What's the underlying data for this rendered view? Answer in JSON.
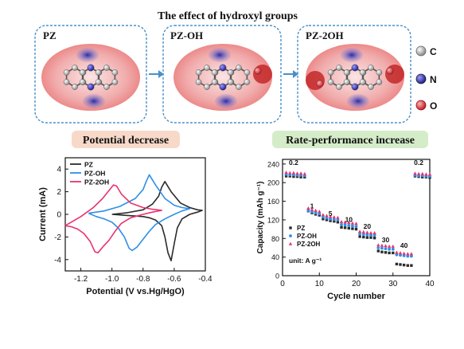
{
  "figure": {
    "title": "The effect of hydroxyl groups",
    "molecules": [
      {
        "label": "PZ"
      },
      {
        "label": "PZ-OH"
      },
      {
        "label": "PZ-2OH"
      }
    ],
    "atom_legend": [
      {
        "label": "C",
        "color": "#b9b9b9"
      },
      {
        "label": "N",
        "color": "#3b3bb5"
      },
      {
        "label": "O",
        "color": "#e23a4a"
      }
    ],
    "left_banner": "Potential decrease",
    "right_banner": "Rate-performance increase",
    "colors": {
      "left_banner_bg": "#f8d9c9",
      "right_banner_bg": "#d5ecc9",
      "esp_red": "#e05050",
      "esp_blue": "#4040c0",
      "frame_blue": "#4a90c8"
    }
  },
  "chart_data": [
    {
      "type": "line",
      "xlabel": "Potential (V vs.Hg/HgO)",
      "ylabel": "Current  (mA)",
      "xlim": [
        -1.3,
        -0.4
      ],
      "ylim": [
        -5,
        5
      ],
      "xticks": [
        "-1.2",
        "-1.0",
        "-0.8",
        "-0.6",
        "-0.4"
      ],
      "yticks": [
        "4",
        "2",
        "0",
        "-2",
        "-4"
      ],
      "legend_position": "top-left",
      "series": [
        {
          "name": "PZ",
          "color": "#2b2b2b",
          "x": [
            -1.0,
            -0.9,
            -0.8,
            -0.74,
            -0.7,
            -0.68,
            -0.66,
            -0.62,
            -0.56,
            -0.5,
            -0.45,
            -0.42,
            -0.45,
            -0.5,
            -0.55,
            -0.58,
            -0.6,
            -0.62,
            -0.64,
            -0.66,
            -0.68,
            -0.72,
            -0.76,
            -0.8,
            -0.85,
            -0.9,
            -0.95,
            -1.0
          ],
          "y": [
            0.0,
            0.15,
            0.4,
            0.9,
            1.6,
            2.4,
            2.9,
            2.0,
            1.0,
            0.6,
            0.4,
            0.35,
            0.2,
            0.0,
            -0.4,
            -1.2,
            -2.6,
            -4.1,
            -3.4,
            -2.0,
            -1.0,
            -0.5,
            -0.3,
            -0.2,
            -0.15,
            -0.1,
            -0.05,
            0.0
          ]
        },
        {
          "name": "PZ-OH",
          "color": "#2f8fe6",
          "x": [
            -1.15,
            -1.05,
            -0.95,
            -0.85,
            -0.8,
            -0.78,
            -0.76,
            -0.72,
            -0.66,
            -0.6,
            -0.55,
            -0.5,
            -0.55,
            -0.6,
            -0.66,
            -0.72,
            -0.76,
            -0.8,
            -0.84,
            -0.87,
            -0.89,
            -0.92,
            -0.96,
            -1.0,
            -1.05,
            -1.1,
            -1.15
          ],
          "y": [
            0.1,
            0.3,
            0.7,
            1.4,
            2.2,
            2.9,
            3.5,
            2.6,
            1.4,
            0.8,
            0.6,
            0.5,
            0.3,
            0.0,
            -0.4,
            -0.9,
            -1.5,
            -2.2,
            -2.9,
            -3.2,
            -3.0,
            -2.0,
            -1.2,
            -0.7,
            -0.4,
            -0.2,
            0.1
          ]
        },
        {
          "name": "PZ-2OH",
          "color": "#e8336c",
          "x": [
            -1.3,
            -1.2,
            -1.12,
            -1.06,
            -1.02,
            -0.99,
            -0.97,
            -0.94,
            -0.88,
            -0.8,
            -0.74,
            -0.68,
            -0.74,
            -0.8,
            -0.88,
            -0.94,
            -0.98,
            -1.02,
            -1.06,
            -1.09,
            -1.11,
            -1.14,
            -1.18,
            -1.22,
            -1.26,
            -1.3
          ],
          "y": [
            -1.0,
            -0.2,
            0.6,
            1.4,
            2.1,
            2.6,
            2.5,
            1.8,
            1.0,
            0.6,
            0.45,
            0.35,
            0.2,
            0.0,
            -0.3,
            -0.8,
            -1.5,
            -2.3,
            -2.9,
            -3.4,
            -3.3,
            -2.4,
            -1.7,
            -1.3,
            -1.1,
            -1.0
          ]
        }
      ]
    },
    {
      "type": "scatter",
      "xlabel": "Cycle number",
      "ylabel": "Capacity (mAh g⁻¹)",
      "xlim": [
        0,
        40
      ],
      "ylim": [
        0,
        250
      ],
      "xticks": [
        "0",
        "10",
        "20",
        "30",
        "40"
      ],
      "yticks": [
        "240",
        "200",
        "160",
        "120",
        "80",
        "40",
        "0"
      ],
      "legend_position": "bottom-left",
      "unit_note": "unit: A g⁻¹",
      "rate_labels": [
        {
          "text": "0.2",
          "cycle": 3,
          "capacity": 238
        },
        {
          "text": "1",
          "cycle": 8,
          "capacity": 145
        },
        {
          "text": "5",
          "cycle": 13,
          "capacity": 128
        },
        {
          "text": "10",
          "cycle": 18,
          "capacity": 116
        },
        {
          "text": "20",
          "cycle": 23,
          "capacity": 101
        },
        {
          "text": "30",
          "cycle": 28,
          "capacity": 72
        },
        {
          "text": "40",
          "cycle": 33,
          "capacity": 60
        },
        {
          "text": "0.2",
          "cycle": 37,
          "capacity": 238
        }
      ],
      "series": [
        {
          "name": "PZ",
          "color": "#2b2b2b",
          "marker": "square",
          "x": [
            1,
            2,
            3,
            4,
            5,
            6,
            7,
            8,
            9,
            10,
            11,
            12,
            13,
            14,
            15,
            16,
            17,
            18,
            19,
            20,
            21,
            22,
            23,
            24,
            25,
            26,
            27,
            28,
            29,
            30,
            31,
            32,
            33,
            34,
            35,
            36,
            37,
            38,
            39,
            40
          ],
          "y": [
            214,
            214,
            213,
            213,
            212,
            212,
            139,
            135,
            132,
            130,
            122,
            120,
            118,
            117,
            115,
            104,
            103,
            102,
            101,
            100,
            84,
            83,
            82,
            82,
            81,
            53,
            51,
            50,
            49,
            49,
            25,
            24,
            23,
            22,
            22,
            214,
            213,
            212,
            212,
            211
          ]
        },
        {
          "name": "PZ-OH",
          "color": "#2f8fe6",
          "marker": "circle",
          "x": [
            1,
            2,
            3,
            4,
            5,
            6,
            7,
            8,
            9,
            10,
            11,
            12,
            13,
            14,
            15,
            16,
            17,
            18,
            19,
            20,
            21,
            22,
            23,
            24,
            25,
            26,
            27,
            28,
            29,
            30,
            31,
            32,
            33,
            34,
            35,
            36,
            37,
            38,
            39,
            40
          ],
          "y": [
            218,
            217,
            217,
            216,
            216,
            215,
            140,
            137,
            135,
            133,
            126,
            124,
            122,
            121,
            120,
            110,
            109,
            108,
            107,
            106,
            90,
            89,
            88,
            87,
            87,
            60,
            59,
            58,
            57,
            57,
            45,
            44,
            43,
            42,
            42,
            216,
            215,
            215,
            214,
            214
          ]
        },
        {
          "name": "PZ-2OH",
          "color": "#e8336c",
          "marker": "triangle",
          "x": [
            1,
            2,
            3,
            4,
            5,
            6,
            7,
            8,
            9,
            10,
            11,
            12,
            13,
            14,
            15,
            16,
            17,
            18,
            19,
            20,
            21,
            22,
            23,
            24,
            25,
            26,
            27,
            28,
            29,
            30,
            31,
            32,
            33,
            34,
            35,
            36,
            37,
            38,
            39,
            40
          ],
          "y": [
            222,
            221,
            221,
            220,
            220,
            219,
            145,
            142,
            140,
            138,
            131,
            129,
            127,
            126,
            125,
            116,
            115,
            114,
            113,
            112,
            95,
            94,
            93,
            92,
            92,
            66,
            65,
            64,
            63,
            63,
            50,
            49,
            48,
            47,
            47,
            220,
            219,
            219,
            218,
            218
          ]
        }
      ]
    }
  ]
}
